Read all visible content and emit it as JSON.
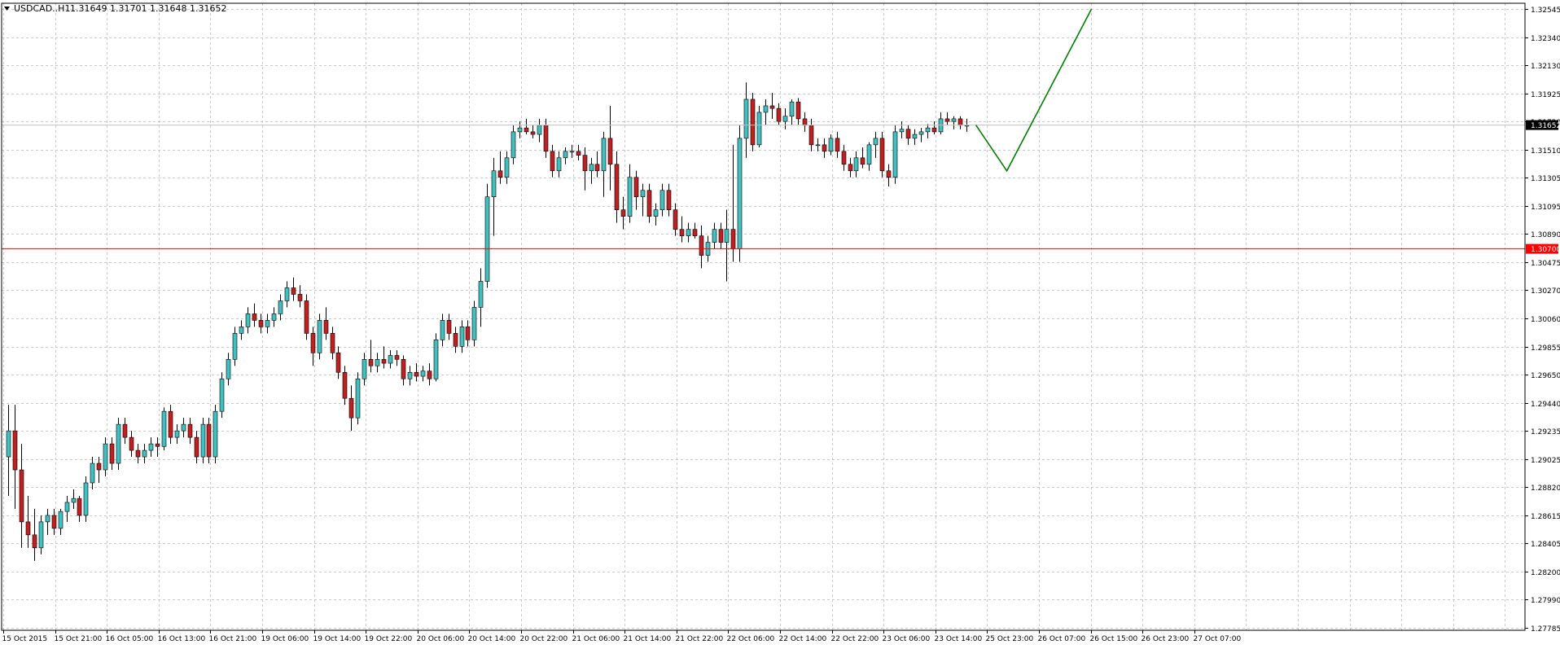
{
  "header": {
    "symbol": "USDCAD..H1",
    "ohlc": "1.31649 1.31701 1.31648 1.31652"
  },
  "colors": {
    "bull": "#40c0c0",
    "bear": "#c02020",
    "wick": "#000000",
    "grid": "#c8c8c8",
    "red_line": "#ff0000",
    "green_line": "#008000",
    "current_label_bg": "#000000"
  },
  "chart_data": {
    "type": "candlestick",
    "symbol": "USDCAD",
    "timeframe": "H1",
    "ylim": [
      1.27785,
      1.32575
    ],
    "y_ticks": [
      "1.32545",
      "1.32340",
      "1.32130",
      "1.31925",
      "1.31720",
      "1.31510",
      "1.31305",
      "1.31095",
      "1.30890",
      "1.30475",
      "1.30270",
      "1.30060",
      "1.29855",
      "1.29650",
      "1.29440",
      "1.29235",
      "1.29025",
      "1.28820",
      "1.28615",
      "1.28405",
      "1.28200",
      "1.27990",
      "1.27785"
    ],
    "x_labels": [
      "15 Oct 2015",
      "15 Oct 21:00",
      "16 Oct 05:00",
      "16 Oct 13:00",
      "16 Oct 21:00",
      "19 Oct 06:00",
      "19 Oct 14:00",
      "19 Oct 22:00",
      "20 Oct 06:00",
      "20 Oct 14:00",
      "20 Oct 22:00",
      "21 Oct 06:00",
      "21 Oct 14:00",
      "21 Oct 22:00",
      "22 Oct 06:00",
      "22 Oct 14:00",
      "22 Oct 22:00",
      "23 Oct 06:00",
      "23 Oct 14:00",
      "25 Oct 23:00",
      "26 Oct 07:00",
      "26 Oct 15:00",
      "26 Oct 23:00",
      "27 Oct 07:00"
    ],
    "horizontal_line": {
      "price": 1.307,
      "label": "1.30700"
    },
    "current_price": {
      "price": 1.31652,
      "label": "1.31652"
    },
    "candles": [
      [
        1.291,
        1.295,
        1.288,
        1.293
      ],
      [
        1.293,
        1.295,
        1.287,
        1.29
      ],
      [
        1.29,
        1.292,
        1.284,
        1.286
      ],
      [
        1.286,
        1.288,
        1.284,
        1.285
      ],
      [
        1.285,
        1.287,
        1.283,
        1.284
      ],
      [
        1.284,
        1.2865,
        1.2835,
        1.286
      ],
      [
        1.286,
        1.287,
        1.285,
        1.2865
      ],
      [
        1.2865,
        1.287,
        1.285,
        1.2855
      ],
      [
        1.2855,
        1.287,
        1.285,
        1.2868
      ],
      [
        1.2868,
        1.288,
        1.286,
        1.2875
      ],
      [
        1.2875,
        1.2885,
        1.287,
        1.2878
      ],
      [
        1.2878,
        1.288,
        1.286,
        1.2865
      ],
      [
        1.2865,
        1.2895,
        1.286,
        1.289
      ],
      [
        1.289,
        1.291,
        1.2885,
        1.2905
      ],
      [
        1.2905,
        1.291,
        1.289,
        1.29
      ],
      [
        1.29,
        1.2925,
        1.2895,
        1.292
      ],
      [
        1.292,
        1.2925,
        1.29,
        1.2905
      ],
      [
        1.2905,
        1.294,
        1.29,
        1.2935
      ],
      [
        1.2935,
        1.294,
        1.292,
        1.2925
      ],
      [
        1.2925,
        1.293,
        1.291,
        1.2915
      ],
      [
        1.2915,
        1.292,
        1.2905,
        1.291
      ],
      [
        1.291,
        1.292,
        1.2905,
        1.2915
      ],
      [
        1.2915,
        1.2925,
        1.291,
        1.292
      ],
      [
        1.292,
        1.2925,
        1.291,
        1.2918
      ],
      [
        1.2918,
        1.2948,
        1.2915,
        1.2945
      ],
      [
        1.2945,
        1.295,
        1.292,
        1.2925
      ],
      [
        1.2925,
        1.2935,
        1.292,
        1.293
      ],
      [
        1.293,
        1.294,
        1.2925,
        1.2935
      ],
      [
        1.2935,
        1.294,
        1.292,
        1.2925
      ],
      [
        1.2925,
        1.293,
        1.2905,
        1.291
      ],
      [
        1.291,
        1.294,
        1.2905,
        1.2935
      ],
      [
        1.2935,
        1.294,
        1.2905,
        1.291
      ],
      [
        1.291,
        1.295,
        1.2905,
        1.2945
      ],
      [
        1.2945,
        1.2975,
        1.294,
        1.297
      ],
      [
        1.297,
        1.299,
        1.2965,
        1.2985
      ],
      [
        1.2985,
        1.301,
        1.298,
        1.3005
      ],
      [
        1.3005,
        1.3015,
        1.3,
        1.301
      ],
      [
        1.301,
        1.3025,
        1.3005,
        1.302
      ],
      [
        1.302,
        1.3028,
        1.301,
        1.3015
      ],
      [
        1.3015,
        1.302,
        1.3005,
        1.301
      ],
      [
        1.301,
        1.302,
        1.3005,
        1.3015
      ],
      [
        1.3015,
        1.3025,
        1.301,
        1.302
      ],
      [
        1.302,
        1.3035,
        1.3015,
        1.303
      ],
      [
        1.303,
        1.3045,
        1.3025,
        1.304
      ],
      [
        1.304,
        1.3048,
        1.303,
        1.3035
      ],
      [
        1.3035,
        1.3042,
        1.3025,
        1.303
      ],
      [
        1.303,
        1.3035,
        1.3,
        1.3005
      ],
      [
        1.3005,
        1.301,
        1.298,
        1.299
      ],
      [
        1.299,
        1.302,
        1.2985,
        1.3015
      ],
      [
        1.3015,
        1.3025,
        1.3,
        1.3005
      ],
      [
        1.3005,
        1.301,
        1.2985,
        1.299
      ],
      [
        1.299,
        1.2995,
        1.297,
        1.2975
      ],
      [
        1.2975,
        1.298,
        1.295,
        1.2955
      ],
      [
        1.2955,
        1.2965,
        1.293,
        1.294
      ],
      [
        1.294,
        1.2975,
        1.2935,
        1.297
      ],
      [
        1.297,
        1.299,
        1.2965,
        1.2985
      ],
      [
        1.2985,
        1.3,
        1.2975,
        1.298
      ],
      [
        1.298,
        1.299,
        1.2975,
        1.2985
      ],
      [
        1.2985,
        1.2995,
        1.2978,
        1.2982
      ],
      [
        1.2982,
        1.2992,
        1.2978,
        1.2988
      ],
      [
        1.2988,
        1.2992,
        1.298,
        1.2985
      ],
      [
        1.2985,
        1.2988,
        1.2965,
        1.297
      ],
      [
        1.297,
        1.298,
        1.2965,
        1.2975
      ],
      [
        1.2975,
        1.2982,
        1.2968,
        1.2972
      ],
      [
        1.2972,
        1.298,
        1.2968,
        1.2976
      ],
      [
        1.2976,
        1.2982,
        1.2965,
        1.297
      ],
      [
        1.297,
        1.3005,
        1.2968,
        1.3
      ],
      [
        1.3,
        1.302,
        1.2995,
        1.3015
      ],
      [
        1.3015,
        1.302,
        1.3,
        1.3005
      ],
      [
        1.3005,
        1.301,
        1.299,
        1.2995
      ],
      [
        1.2995,
        1.3015,
        1.299,
        1.301
      ],
      [
        1.301,
        1.3015,
        1.2995,
        1.3
      ],
      [
        1.3,
        1.303,
        1.2995,
        1.3025
      ],
      [
        1.3025,
        1.3055,
        1.301,
        1.3045
      ],
      [
        1.3045,
        1.312,
        1.304,
        1.311
      ],
      [
        1.311,
        1.314,
        1.308,
        1.313
      ],
      [
        1.313,
        1.3145,
        1.312,
        1.3125
      ],
      [
        1.3125,
        1.3145,
        1.312,
        1.314
      ],
      [
        1.314,
        1.3165,
        1.3135,
        1.316
      ],
      [
        1.316,
        1.3168,
        1.3155,
        1.3163
      ],
      [
        1.3163,
        1.317,
        1.3158,
        1.316
      ],
      [
        1.316,
        1.3165,
        1.3155,
        1.3158
      ],
      [
        1.3158,
        1.317,
        1.3152,
        1.3165
      ],
      [
        1.3165,
        1.317,
        1.314,
        1.3145
      ],
      [
        1.3145,
        1.315,
        1.3125,
        1.313
      ],
      [
        1.313,
        1.3145,
        1.3125,
        1.314
      ],
      [
        1.314,
        1.3148,
        1.3135,
        1.3145
      ],
      [
        1.3145,
        1.315,
        1.314,
        1.3145
      ],
      [
        1.3145,
        1.315,
        1.3138,
        1.3142
      ],
      [
        1.3142,
        1.3148,
        1.3115,
        1.313
      ],
      [
        1.313,
        1.314,
        1.312,
        1.3135
      ],
      [
        1.3135,
        1.3145,
        1.3125,
        1.313
      ],
      [
        1.313,
        1.316,
        1.311,
        1.3155
      ],
      [
        1.3155,
        1.318,
        1.3115,
        1.3135
      ],
      [
        1.3135,
        1.3145,
        1.309,
        1.31
      ],
      [
        1.31,
        1.311,
        1.3085,
        1.3095
      ],
      [
        1.3095,
        1.3135,
        1.309,
        1.3125
      ],
      [
        1.3125,
        1.313,
        1.31,
        1.311
      ],
      [
        1.311,
        1.312,
        1.3095,
        1.3115
      ],
      [
        1.3115,
        1.312,
        1.309,
        1.3095
      ],
      [
        1.3095,
        1.3105,
        1.3088,
        1.31
      ],
      [
        1.31,
        1.312,
        1.3095,
        1.3115
      ],
      [
        1.3115,
        1.312,
        1.3095,
        1.31
      ],
      [
        1.31,
        1.3105,
        1.308,
        1.3085
      ],
      [
        1.3085,
        1.3095,
        1.3075,
        1.308
      ],
      [
        1.308,
        1.309,
        1.3075,
        1.3085
      ],
      [
        1.3085,
        1.309,
        1.3078,
        1.308
      ],
      [
        1.308,
        1.3088,
        1.3055,
        1.3065
      ],
      [
        1.3065,
        1.308,
        1.306,
        1.3075
      ],
      [
        1.3075,
        1.309,
        1.307,
        1.3085
      ],
      [
        1.3085,
        1.309,
        1.307,
        1.3075
      ],
      [
        1.3075,
        1.31,
        1.3045,
        1.3085
      ],
      [
        1.3085,
        1.315,
        1.306,
        1.307
      ],
      [
        1.307,
        1.3165,
        1.306,
        1.3155
      ],
      [
        1.3155,
        1.3198,
        1.314,
        1.3185
      ],
      [
        1.3185,
        1.319,
        1.3145,
        1.315
      ],
      [
        1.315,
        1.318,
        1.3148,
        1.3175
      ],
      [
        1.3175,
        1.3185,
        1.3165,
        1.318
      ],
      [
        1.318,
        1.319,
        1.317,
        1.3178
      ],
      [
        1.3178,
        1.3182,
        1.3165,
        1.3168
      ],
      [
        1.3168,
        1.3178,
        1.3162,
        1.3172
      ],
      [
        1.3172,
        1.3185,
        1.3165,
        1.3183
      ],
      [
        1.3183,
        1.3186,
        1.3165,
        1.317
      ],
      [
        1.317,
        1.3175,
        1.316,
        1.3165
      ],
      [
        1.3165,
        1.317,
        1.3145,
        1.315
      ],
      [
        1.315,
        1.3155,
        1.3145,
        1.315
      ],
      [
        1.315,
        1.3155,
        1.314,
        1.3145
      ],
      [
        1.3145,
        1.3158,
        1.3142,
        1.3155
      ],
      [
        1.3155,
        1.316,
        1.314,
        1.3145
      ],
      [
        1.3145,
        1.315,
        1.313,
        1.3135
      ],
      [
        1.3135,
        1.314,
        1.3125,
        1.313
      ],
      [
        1.313,
        1.3145,
        1.3125,
        1.314
      ],
      [
        1.314,
        1.3148,
        1.3132,
        1.3135
      ],
      [
        1.3135,
        1.3152,
        1.313,
        1.315
      ],
      [
        1.315,
        1.316,
        1.314,
        1.3155
      ],
      [
        1.3155,
        1.316,
        1.3125,
        1.313
      ],
      [
        1.313,
        1.3135,
        1.3118,
        1.3125
      ],
      [
        1.3125,
        1.3165,
        1.312,
        1.316
      ],
      [
        1.316,
        1.3168,
        1.3155,
        1.3162
      ],
      [
        1.3162,
        1.3165,
        1.315,
        1.3155
      ],
      [
        1.3155,
        1.3162,
        1.315,
        1.3158
      ],
      [
        1.3158,
        1.3163,
        1.3152,
        1.316
      ],
      [
        1.316,
        1.3166,
        1.3155,
        1.3163
      ],
      [
        1.3163,
        1.3168,
        1.3158,
        1.316
      ],
      [
        1.316,
        1.3175,
        1.3158,
        1.317
      ],
      [
        1.317,
        1.3175,
        1.3165,
        1.3168
      ],
      [
        1.3168,
        1.3172,
        1.3162,
        1.317
      ],
      [
        1.317,
        1.3172,
        1.3162,
        1.3165
      ],
      [
        1.3165,
        1.317,
        1.316,
        1.3165
      ]
    ],
    "projection": [
      [
        1.31652,
        1.313,
        1.32545
      ],
      [
        0,
        38,
        142
      ]
    ]
  }
}
